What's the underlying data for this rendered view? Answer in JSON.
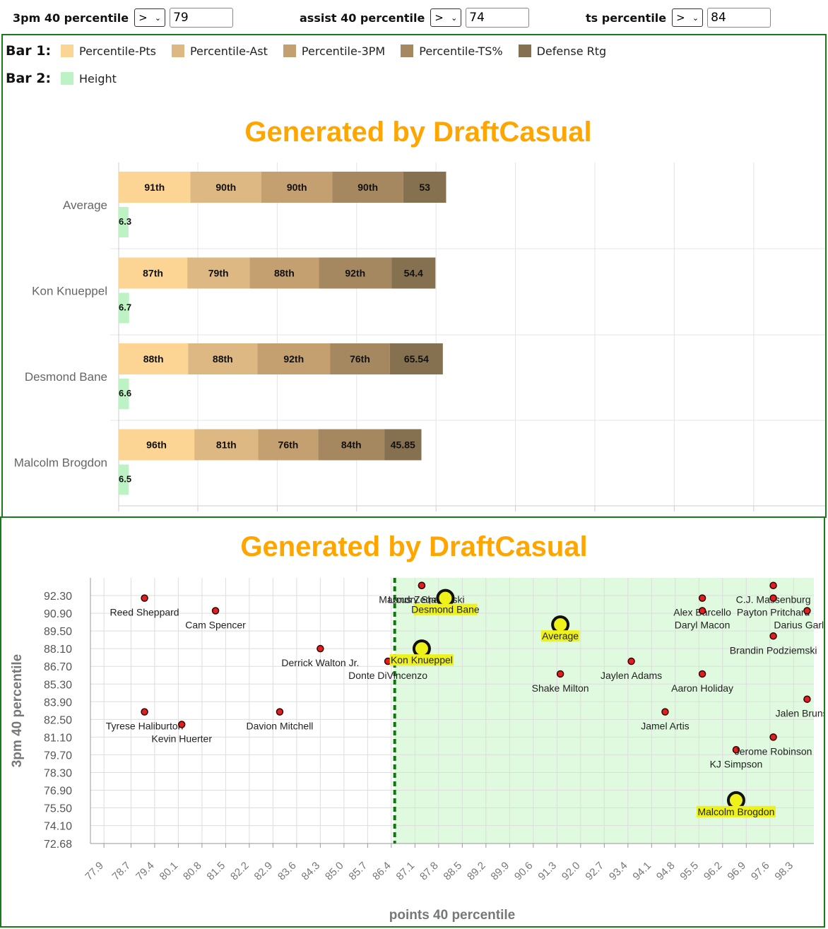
{
  "filters": [
    {
      "label": "3pm 40 percentile",
      "operator": ">",
      "value": "79"
    },
    {
      "label": "assist 40 percentile",
      "operator": ">",
      "value": "74"
    },
    {
      "label": "ts percentile",
      "operator": ">",
      "value": "84"
    }
  ],
  "legend": {
    "bar1_title": "Bar 1:",
    "bar2_title": "Bar 2:",
    "bar1_items": [
      {
        "label": "Percentile-Pts",
        "color": "#FCD595"
      },
      {
        "label": "Percentile-Ast",
        "color": "#DEB882"
      },
      {
        "label": "Percentile-3PM",
        "color": "#C4A070"
      },
      {
        "label": "Percentile-TS%",
        "color": "#A68860"
      },
      {
        "label": "Defense Rtg",
        "color": "#85704F"
      }
    ],
    "bar2_items": [
      {
        "label": "Height",
        "color": "#BDF2C4"
      }
    ]
  },
  "chart_data": [
    {
      "type": "bar",
      "title": "Generated by DraftCasual",
      "stacked": true,
      "orientation": "horizontal",
      "categories": [
        "Average",
        "Kon Knueppel",
        "Desmond Bane",
        "Malcolm Brogdon"
      ],
      "series": [
        {
          "name": "Percentile-Pts",
          "values": [
            91,
            87,
            88,
            96
          ],
          "labels": [
            "91th",
            "87th",
            "88th",
            "96th"
          ]
        },
        {
          "name": "Percentile-Ast",
          "values": [
            90,
            79,
            88,
            81
          ],
          "labels": [
            "90th",
            "79th",
            "88th",
            "81th"
          ]
        },
        {
          "name": "Percentile-3PM",
          "values": [
            90,
            88,
            92,
            76
          ],
          "labels": [
            "90th",
            "88th",
            "92th",
            "76th"
          ]
        },
        {
          "name": "Percentile-TS%",
          "values": [
            90,
            92,
            76,
            84
          ],
          "labels": [
            "90th",
            "92th",
            "76th",
            "84th"
          ]
        },
        {
          "name": "Defense Rtg",
          "values": [
            53,
            54.4,
            65.54,
            45.85
          ],
          "labels": [
            "53",
            "54.4",
            "65.54",
            "45.85"
          ]
        }
      ],
      "bar2": {
        "name": "Height",
        "values": [
          6.3,
          6.7,
          6.6,
          6.5
        ],
        "labels": [
          "6.3",
          "6.7",
          "6.6",
          "6.5"
        ]
      },
      "grid": true
    },
    {
      "type": "scatter",
      "title": "Generated by DraftCasual",
      "xlabel": "points 40 percentile",
      "ylabel": "3pm 40 percentile",
      "xlim": [
        77.5,
        98.9
      ],
      "ylim": [
        72.68,
        93.7
      ],
      "xticks": [
        "77.9",
        "78.7",
        "79.4",
        "80.1",
        "80.8",
        "81.5",
        "82.2",
        "82.9",
        "83.6",
        "84.3",
        "85.0",
        "85.7",
        "86.4",
        "87.1",
        "87.8",
        "88.5",
        "89.2",
        "89.9",
        "90.6",
        "91.3",
        "92.0",
        "92.7",
        "93.4",
        "94.1",
        "94.8",
        "95.5",
        "96.2",
        "96.9",
        "97.6",
        "98.3"
      ],
      "yticks": [
        "92.30",
        "90.90",
        "89.50",
        "88.10",
        "86.70",
        "85.30",
        "83.90",
        "82.50",
        "81.10",
        "79.70",
        "78.30",
        "76.90",
        "75.50",
        "74.10",
        "72.68"
      ],
      "threshold_x": 86.5,
      "grid": true,
      "points": [
        {
          "name": "Reed Sheppard",
          "x": 79.1,
          "y": 92.1
        },
        {
          "name": "Cam Spencer",
          "x": 81.2,
          "y": 91.1
        },
        {
          "name": "Derrick Walton Jr.",
          "x": 84.3,
          "y": 88.1
        },
        {
          "name": "Donte DiVincenzo",
          "x": 86.3,
          "y": 87.1
        },
        {
          "name": "Tyrese Haliburton",
          "x": 79.1,
          "y": 83.1
        },
        {
          "name": "Kevin Huerter",
          "x": 80.2,
          "y": 82.1
        },
        {
          "name": "Davion Mitchell",
          "x": 83.1,
          "y": 83.1
        },
        {
          "name": "Landry Shamet",
          "x": 87.3,
          "y": 93.1
        },
        {
          "name": "Marcus Zegarowski",
          "x": 87.3,
          "y": 93.1
        },
        {
          "name": "Shake Milton",
          "x": 91.4,
          "y": 86.1
        },
        {
          "name": "Jaylen Adams",
          "x": 93.5,
          "y": 87.1
        },
        {
          "name": "Jamel Artis",
          "x": 94.5,
          "y": 83.1
        },
        {
          "name": "Alex Barcello",
          "x": 95.6,
          "y": 92.1
        },
        {
          "name": "Daryl Macon",
          "x": 95.6,
          "y": 91.1
        },
        {
          "name": "Aaron Holiday",
          "x": 95.6,
          "y": 86.1
        },
        {
          "name": "KJ Simpson",
          "x": 96.6,
          "y": 80.1
        },
        {
          "name": "Jerome Robinson",
          "x": 97.7,
          "y": 81.1
        },
        {
          "name": "Brandin Podziemski",
          "x": 97.7,
          "y": 89.1
        },
        {
          "name": "C.J. Massenburg",
          "x": 97.7,
          "y": 93.1
        },
        {
          "name": "Payton Pritchard",
          "x": 97.7,
          "y": 92.1
        },
        {
          "name": "Darius Garland",
          "x": 98.7,
          "y": 91.1
        },
        {
          "name": "Jalen Brunson",
          "x": 98.7,
          "y": 84.1
        }
      ],
      "highlighted": [
        {
          "name": "Desmond Bane",
          "x": 88.0,
          "y": 92.1
        },
        {
          "name": "Average",
          "x": 91.4,
          "y": 90.0
        },
        {
          "name": "Kon Knueppel",
          "x": 87.3,
          "y": 88.1
        },
        {
          "name": "Malcolm Brogdon",
          "x": 96.6,
          "y": 76.1
        }
      ]
    }
  ]
}
